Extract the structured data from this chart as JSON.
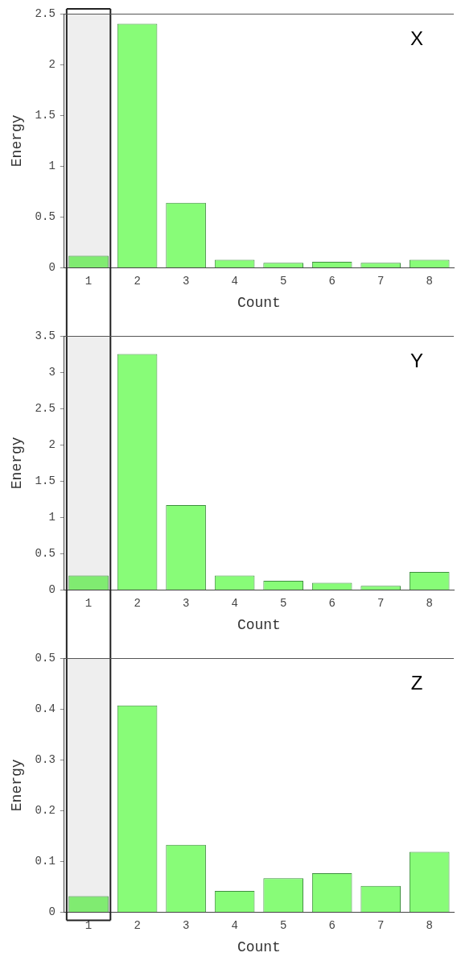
{
  "chart_data": [
    {
      "type": "bar",
      "title": "X",
      "xlabel": "Count",
      "ylabel": "Energy",
      "categories": [
        "1",
        "2",
        "3",
        "4",
        "5",
        "6",
        "7",
        "8"
      ],
      "values": [
        0.12,
        2.4,
        0.64,
        0.08,
        0.05,
        0.06,
        0.05,
        0.08
      ],
      "color": "#88fc78",
      "ylim": [
        0,
        2.5
      ],
      "yticks": [
        0,
        0.5,
        1,
        1.5,
        2,
        2.5
      ],
      "grid": false,
      "bands": [
        {
          "axis": "x",
          "from": "1",
          "to": "1",
          "color": "#222222"
        }
      ]
    },
    {
      "type": "bar",
      "title": "Y",
      "xlabel": "Count",
      "ylabel": "Energy",
      "categories": [
        "1",
        "2",
        "3",
        "4",
        "5",
        "6",
        "7",
        "8"
      ],
      "values": [
        0.2,
        3.25,
        1.17,
        0.2,
        0.13,
        0.1,
        0.06,
        0.25
      ],
      "color": "#88fc78",
      "ylim": [
        0,
        3.5
      ],
      "yticks": [
        0,
        0.5,
        1,
        1.5,
        2,
        2.5,
        3,
        3.5
      ],
      "grid": false,
      "bands": [
        {
          "axis": "x",
          "from": "1",
          "to": "1",
          "color": "#222222"
        }
      ]
    },
    {
      "type": "bar",
      "title": "Z",
      "xlabel": "Count",
      "ylabel": "Energy",
      "categories": [
        "1",
        "2",
        "3",
        "4",
        "5",
        "6",
        "7",
        "8"
      ],
      "values": [
        0.032,
        0.407,
        0.133,
        0.042,
        0.067,
        0.077,
        0.052,
        0.119
      ],
      "color": "#88fc78",
      "ylim": [
        0,
        0.5
      ],
      "yticks": [
        0,
        0.1,
        0.2,
        0.3,
        0.4,
        0.5
      ],
      "grid": false,
      "bands": [
        {
          "axis": "x",
          "from": "1",
          "to": "1",
          "color": "#222222"
        }
      ]
    }
  ]
}
